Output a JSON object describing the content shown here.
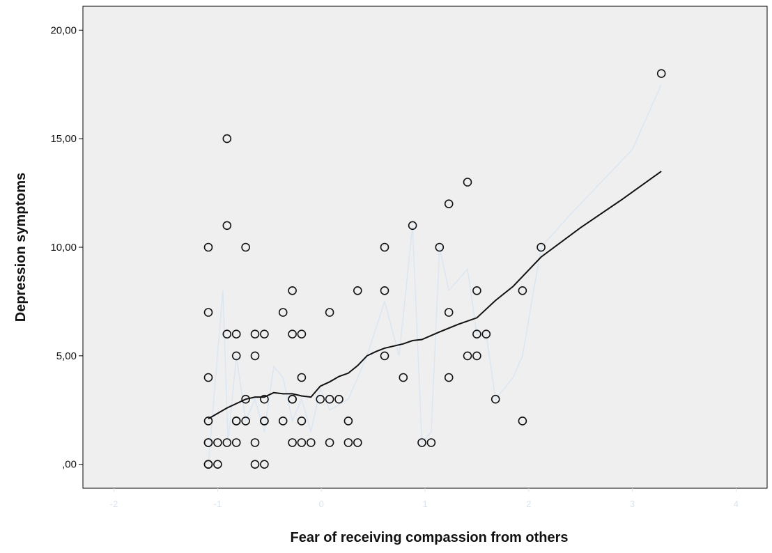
{
  "chart_data": {
    "type": "scatter",
    "xlabel": "Fear of receiving compassion from others",
    "ylabel": "Depression symptoms",
    "xlim": [
      -2.3,
      4.3
    ],
    "ylim": [
      -1.1,
      21.1
    ],
    "x_ticks": [
      -2,
      -1,
      0,
      1,
      2,
      3,
      4
    ],
    "x_tick_labels": [
      "-2",
      "-1",
      "0",
      "1",
      "2",
      "3",
      "4"
    ],
    "y_ticks": [
      0,
      5,
      10,
      15,
      20
    ],
    "y_tick_labels": [
      ",00",
      "5,00",
      "10,00",
      "15,00",
      "20,00"
    ],
    "grid": false,
    "colors": {
      "plot_background": "#efefef",
      "marker_stroke": "#111111",
      "fit_line": "#111111",
      "faint_line": "#dbe6f3",
      "x_tick_labels": "#d9e4f1"
    },
    "series": [
      {
        "mark": "open-circle",
        "points": [
          [
            -1.09,
            10
          ],
          [
            -1.09,
            7
          ],
          [
            -1.09,
            4
          ],
          [
            -1.09,
            2
          ],
          [
            -1.09,
            1
          ],
          [
            -1.09,
            1
          ],
          [
            -1.09,
            0
          ],
          [
            -1.09,
            0
          ],
          [
            -1.0,
            1
          ],
          [
            -1.0,
            0
          ],
          [
            -0.91,
            15
          ],
          [
            -0.91,
            11
          ],
          [
            -0.91,
            6
          ],
          [
            -0.91,
            1
          ],
          [
            -0.82,
            6
          ],
          [
            -0.82,
            5
          ],
          [
            -0.82,
            2
          ],
          [
            -0.82,
            2
          ],
          [
            -0.82,
            1
          ],
          [
            -0.73,
            10
          ],
          [
            -0.73,
            3
          ],
          [
            -0.73,
            2
          ],
          [
            -0.64,
            6
          ],
          [
            -0.64,
            5
          ],
          [
            -0.64,
            1
          ],
          [
            -0.64,
            0
          ],
          [
            -0.55,
            6
          ],
          [
            -0.55,
            3
          ],
          [
            -0.55,
            2
          ],
          [
            -0.55,
            2
          ],
          [
            -0.55,
            0
          ],
          [
            -0.37,
            7
          ],
          [
            -0.37,
            2
          ],
          [
            -0.28,
            8
          ],
          [
            -0.28,
            6
          ],
          [
            -0.28,
            3
          ],
          [
            -0.28,
            3
          ],
          [
            -0.28,
            1
          ],
          [
            -0.19,
            6
          ],
          [
            -0.19,
            4
          ],
          [
            -0.19,
            2
          ],
          [
            -0.19,
            1
          ],
          [
            -0.1,
            1
          ],
          [
            -0.01,
            3
          ],
          [
            0.08,
            7
          ],
          [
            0.08,
            3
          ],
          [
            0.08,
            1
          ],
          [
            0.17,
            3
          ],
          [
            0.26,
            2
          ],
          [
            0.26,
            1
          ],
          [
            0.35,
            8
          ],
          [
            0.35,
            1
          ],
          [
            0.61,
            10
          ],
          [
            0.61,
            8
          ],
          [
            0.61,
            5
          ],
          [
            0.79,
            4
          ],
          [
            0.88,
            11
          ],
          [
            0.97,
            1
          ],
          [
            1.06,
            1
          ],
          [
            1.14,
            10
          ],
          [
            1.23,
            12
          ],
          [
            1.23,
            7
          ],
          [
            1.23,
            4
          ],
          [
            1.41,
            13
          ],
          [
            1.41,
            5
          ],
          [
            1.5,
            8
          ],
          [
            1.5,
            6
          ],
          [
            1.5,
            5
          ],
          [
            1.59,
            6
          ],
          [
            1.68,
            3
          ],
          [
            1.94,
            8
          ],
          [
            1.94,
            2
          ],
          [
            2.12,
            10
          ],
          [
            3.28,
            18
          ]
        ]
      }
    ],
    "fit_line": [
      [
        -1.09,
        2.1
      ],
      [
        -0.91,
        2.6
      ],
      [
        -0.73,
        3.0
      ],
      [
        -0.64,
        3.1
      ],
      [
        -0.55,
        3.1
      ],
      [
        -0.46,
        3.3
      ],
      [
        -0.37,
        3.25
      ],
      [
        -0.28,
        3.25
      ],
      [
        -0.19,
        3.15
      ],
      [
        -0.1,
        3.1
      ],
      [
        -0.01,
        3.6
      ],
      [
        0.08,
        3.8
      ],
      [
        0.17,
        4.05
      ],
      [
        0.26,
        4.2
      ],
      [
        0.35,
        4.55
      ],
      [
        0.44,
        5.0
      ],
      [
        0.53,
        5.2
      ],
      [
        0.61,
        5.35
      ],
      [
        0.79,
        5.55
      ],
      [
        0.88,
        5.7
      ],
      [
        0.97,
        5.75
      ],
      [
        1.14,
        6.1
      ],
      [
        1.32,
        6.45
      ],
      [
        1.5,
        6.75
      ],
      [
        1.68,
        7.55
      ],
      [
        1.85,
        8.2
      ],
      [
        2.12,
        9.55
      ],
      [
        2.5,
        10.9
      ],
      [
        2.9,
        12.2
      ],
      [
        3.28,
        13.5
      ]
    ],
    "faint_line": [
      [
        -1.09,
        0.0
      ],
      [
        -0.95,
        8.0
      ],
      [
        -0.9,
        1.0
      ],
      [
        -0.82,
        5.0
      ],
      [
        -0.73,
        2.0
      ],
      [
        -0.64,
        3.0
      ],
      [
        -0.55,
        1.5
      ],
      [
        -0.46,
        4.5
      ],
      [
        -0.37,
        4.0
      ],
      [
        -0.28,
        2.0
      ],
      [
        -0.19,
        3.0
      ],
      [
        -0.1,
        1.5
      ],
      [
        -0.01,
        3.5
      ],
      [
        0.08,
        2.5
      ],
      [
        0.26,
        3.0
      ],
      [
        0.44,
        5.0
      ],
      [
        0.61,
        7.5
      ],
      [
        0.75,
        5.0
      ],
      [
        0.88,
        11.0
      ],
      [
        0.97,
        1.0
      ],
      [
        1.06,
        1.5
      ],
      [
        1.14,
        10.0
      ],
      [
        1.23,
        8.0
      ],
      [
        1.32,
        8.5
      ],
      [
        1.41,
        9.0
      ],
      [
        1.5,
        6.0
      ],
      [
        1.59,
        6.0
      ],
      [
        1.68,
        3.0
      ],
      [
        1.85,
        4.0
      ],
      [
        1.94,
        5.0
      ],
      [
        2.12,
        10.0
      ],
      [
        2.4,
        11.5
      ],
      [
        2.7,
        13.0
      ],
      [
        3.0,
        14.5
      ],
      [
        3.28,
        17.5
      ]
    ]
  }
}
